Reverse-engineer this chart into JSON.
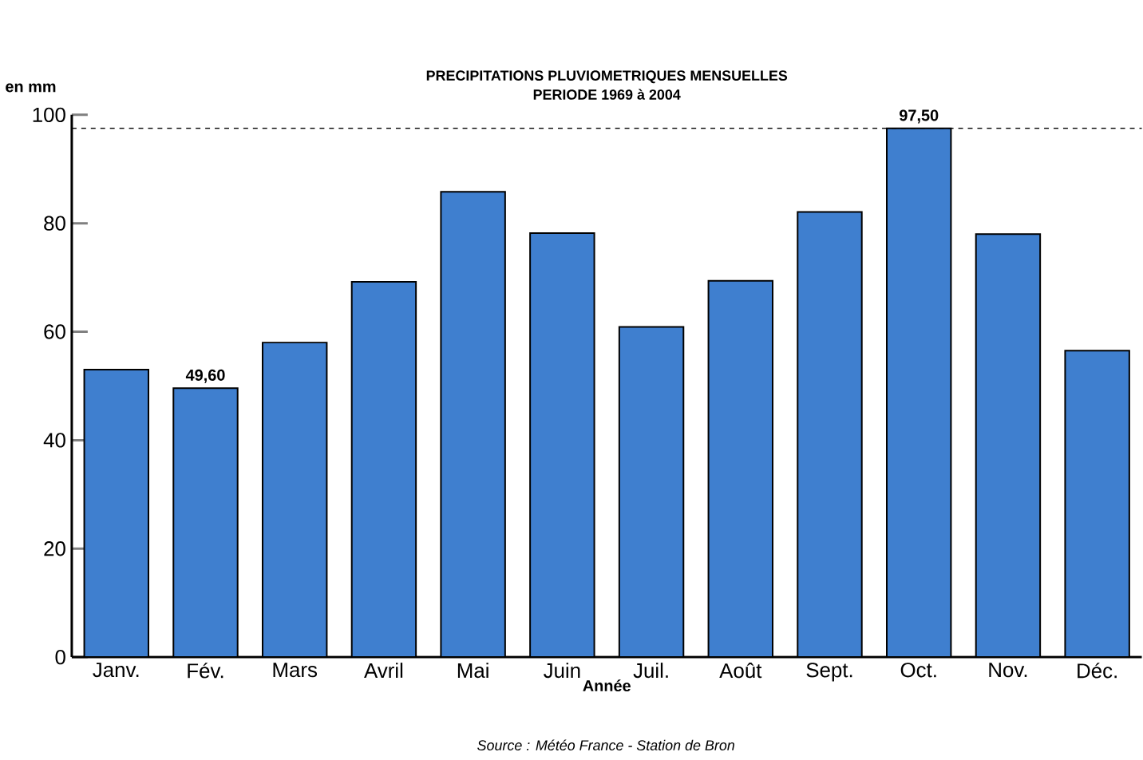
{
  "chart_data": {
    "type": "bar",
    "title": "PRECIPITATIONS PLUVIOMETRIQUES MENSUELLES",
    "subtitle": "PERIODE 1969 à 2004",
    "ylabel": "en mm",
    "xlabel": "Année",
    "categories": [
      "Janv.",
      "Fév.",
      "Mars",
      "Avril",
      "Mai",
      "Juin",
      "Juil.",
      "Août",
      "Sept.",
      "Oct.",
      "Nov.",
      "Déc."
    ],
    "values": [
      53.0,
      49.6,
      58.0,
      69.2,
      85.8,
      78.2,
      60.9,
      69.4,
      82.1,
      97.5,
      78.0,
      56.5
    ],
    "value_labels": [
      null,
      "49,60",
      null,
      null,
      null,
      null,
      null,
      null,
      null,
      "97,50",
      null,
      null
    ],
    "color": "#3f7fcf",
    "ylim": [
      0,
      100
    ],
    "yticks": [
      0,
      20,
      40,
      60,
      80,
      100
    ],
    "ref_lines": [
      {
        "axis": "y",
        "value": 97.5,
        "color": "#000000",
        "line_style": "dashed"
      }
    ],
    "annotations": [
      "Source : Météo France - Station de Bron"
    ]
  }
}
